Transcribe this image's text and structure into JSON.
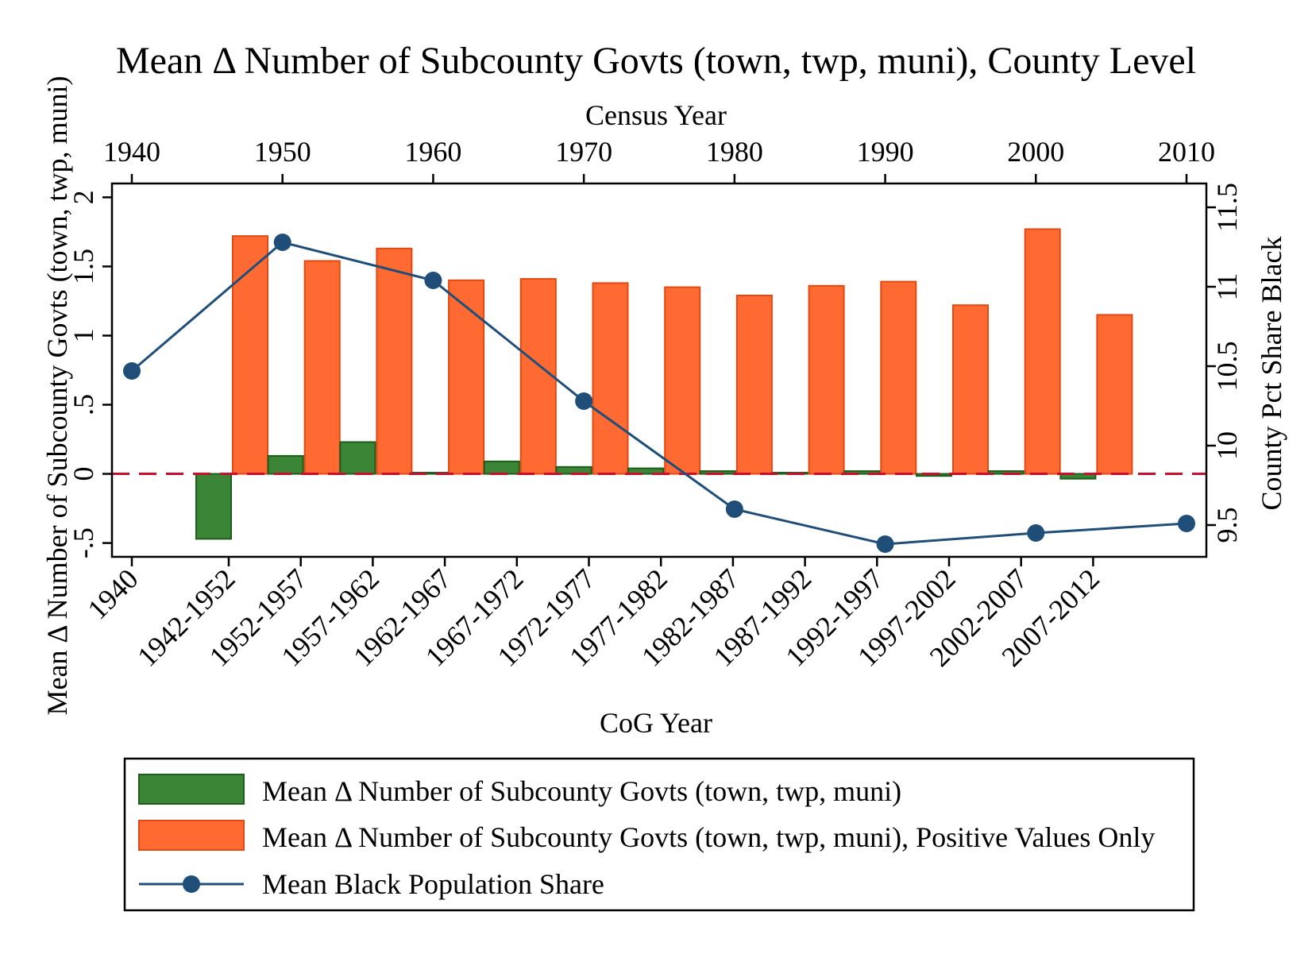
{
  "chart_data": {
    "type": "bar",
    "title": "Mean Δ Number of Subcounty Govts (town, twp, muni), County Level",
    "top_axis": {
      "label": "Census Year",
      "ticks": [
        "1940",
        "1950",
        "1960",
        "1970",
        "1980",
        "1990",
        "2000",
        "2010"
      ],
      "range": [
        1940,
        2010
      ]
    },
    "bottom_axis": {
      "label": "CoG Year",
      "ticks": [
        "1940",
        "1942-1952",
        "1952-1957",
        "1957-1962",
        "1962-1967",
        "1967-1972",
        "1972-1977",
        "1977-1982",
        "1982-1987",
        "1987-1992",
        "1992-1997",
        "1997-2002",
        "2002-2007",
        "2007-2012"
      ]
    },
    "left_axis": {
      "label": "Mean Δ Number of Subcounty Govts (town, twp, muni)",
      "ticks": [
        "-.5",
        "0",
        ".5",
        "1",
        "1.5",
        "2"
      ],
      "range": [
        -0.6,
        2.1
      ]
    },
    "right_axis": {
      "label": "County Pct Share Black",
      "ticks": [
        "9.5",
        "10",
        "10.5",
        "11",
        "11.5"
      ],
      "range": [
        9.3,
        11.65
      ]
    },
    "reference_line": {
      "y": 0,
      "style": "dashed",
      "color": "#c8102e"
    },
    "series": [
      {
        "name": "Mean Δ Number of Subcounty Govts (town, twp, muni)",
        "kind": "bar",
        "color": "#3a8536",
        "categories": [
          "1942-1952",
          "1952-1957",
          "1957-1962",
          "1962-1967",
          "1967-1972",
          "1972-1977",
          "1977-1982",
          "1982-1987",
          "1987-1992",
          "1992-1997",
          "1997-2002",
          "2002-2007",
          "2007-2012"
        ],
        "values": [
          -0.47,
          0.13,
          0.23,
          0.0,
          0.09,
          0.05,
          0.04,
          0.02,
          0.005,
          0.02,
          -0.015,
          0.02,
          -0.035
        ]
      },
      {
        "name": "Mean Δ Number of Subcounty Govts (town, twp, muni), Positive Values Only",
        "kind": "bar",
        "color": "#ff6a33",
        "categories": [
          "1942-1952",
          "1952-1957",
          "1957-1962",
          "1962-1967",
          "1967-1972",
          "1972-1977",
          "1977-1982",
          "1982-1987",
          "1987-1992",
          "1992-1997",
          "1997-2002",
          "2002-2007",
          "2007-2012"
        ],
        "values": [
          1.72,
          1.54,
          1.63,
          1.4,
          1.41,
          1.38,
          1.35,
          1.29,
          1.36,
          1.39,
          1.22,
          1.77,
          1.15
        ]
      },
      {
        "name": "Mean Black Population Share",
        "kind": "line",
        "color": "#1f4e79",
        "x": [
          1940,
          1950,
          1960,
          1970,
          1980,
          1990,
          2000,
          2010
        ],
        "values": [
          10.47,
          11.28,
          11.04,
          10.28,
          9.6,
          9.38,
          9.45,
          9.51
        ]
      }
    ],
    "legend": {
      "placement": "bottom"
    }
  }
}
